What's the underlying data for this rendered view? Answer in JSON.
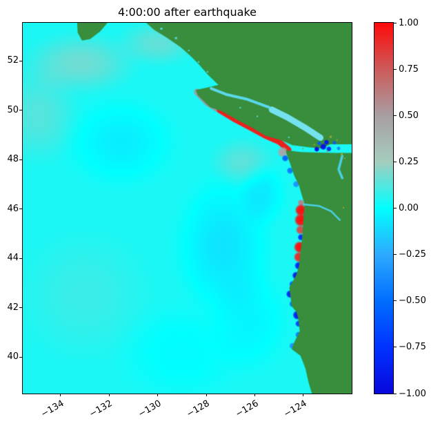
{
  "title": "4:00:00 after earthquake",
  "chart_data": {
    "type": "heatmap",
    "title": "4:00:00 after earthquake",
    "xlabel": "",
    "ylabel": "",
    "xlim": [
      -135.56,
      -122.01
    ],
    "ylim": [
      38.52,
      53.54
    ],
    "xticks": [
      {
        "value": -134,
        "label": "−134"
      },
      {
        "value": -132,
        "label": "−132"
      },
      {
        "value": -130,
        "label": "−130"
      },
      {
        "value": -128,
        "label": "−128"
      },
      {
        "value": -126,
        "label": "−126"
      },
      {
        "value": -124,
        "label": "−124"
      }
    ],
    "yticks": [
      {
        "value": 40,
        "label": "40"
      },
      {
        "value": 42,
        "label": "42"
      },
      {
        "value": 44,
        "label": "44"
      },
      {
        "value": 46,
        "label": "46"
      },
      {
        "value": 48,
        "label": "48"
      },
      {
        "value": 50,
        "label": "50"
      },
      {
        "value": 52,
        "label": "52"
      }
    ],
    "colorbar": {
      "min": -1,
      "max": 1,
      "ticks": [
        {
          "value": 1.0,
          "label": "1.00"
        },
        {
          "value": 0.75,
          "label": "0.75"
        },
        {
          "value": 0.5,
          "label": "0.50"
        },
        {
          "value": 0.25,
          "label": "0.25"
        },
        {
          "value": 0.0,
          "label": "0.00"
        },
        {
          "value": -0.25,
          "label": "−0.25"
        },
        {
          "value": -0.5,
          "label": "−0.50"
        },
        {
          "value": -0.75,
          "label": "−0.75"
        },
        {
          "value": -1.0,
          "label": "−1.00"
        }
      ]
    },
    "colormap_stops": [
      {
        "v": -1.0,
        "rgb": [
          8,
          8,
          220
        ]
      },
      {
        "v": -0.75,
        "rgb": [
          0,
          50,
          255
        ]
      },
      {
        "v": -0.5,
        "rgb": [
          0,
          110,
          255
        ]
      },
      {
        "v": -0.25,
        "rgb": [
          45,
          170,
          255
        ]
      },
      {
        "v": 0.0,
        "rgb": [
          0,
          255,
          255
        ]
      },
      {
        "v": 0.25,
        "rgb": [
          165,
          205,
          190
        ]
      },
      {
        "v": 0.5,
        "rgb": [
          168,
          158,
          162
        ]
      },
      {
        "v": 0.75,
        "rgb": [
          205,
          90,
          90
        ]
      },
      {
        "v": 1.0,
        "rgb": [
          255,
          10,
          10
        ]
      }
    ],
    "land_color": "#388e3c",
    "ocean": {
      "base": 0.04,
      "blobs": [
        {
          "lon": -133.2,
          "lat": 51.9,
          "rx": 2.8,
          "ry": 1.5,
          "v": 0.13
        },
        {
          "lon": -130.0,
          "lat": 52.7,
          "rx": 2.0,
          "ry": 1.1,
          "v": 0.11
        },
        {
          "lon": -134.9,
          "lat": 49.8,
          "rx": 2.0,
          "ry": 2.4,
          "v": 0.09
        },
        {
          "lon": -131.5,
          "lat": 48.7,
          "rx": 2.8,
          "ry": 2.2,
          "v": -0.09
        },
        {
          "lon": -127.3,
          "lat": 44.5,
          "rx": 2.4,
          "ry": 3.4,
          "v": -0.12
        },
        {
          "lon": -125.7,
          "lat": 46.6,
          "rx": 1.2,
          "ry": 1.6,
          "v": -0.1
        },
        {
          "lon": -126.5,
          "lat": 47.9,
          "rx": 1.6,
          "ry": 1.2,
          "v": 0.1
        },
        {
          "lon": -133.0,
          "lat": 42.5,
          "rx": 3.4,
          "ry": 3.2,
          "v": 0.05
        },
        {
          "lon": -129.0,
          "lat": 40.2,
          "rx": 3.2,
          "ry": 2.4,
          "v": -0.05
        },
        {
          "lon": -126.2,
          "lat": 41.5,
          "rx": 2.0,
          "ry": 2.6,
          "v": -0.07
        }
      ]
    },
    "coastal_band": {
      "points": [
        [
          -128.38,
          50.74
        ],
        [
          -127.95,
          50.3
        ],
        [
          -127.45,
          50.0
        ],
        [
          -126.85,
          49.64
        ],
        [
          -126.2,
          49.3
        ],
        [
          -125.6,
          48.98
        ],
        [
          -125.0,
          48.72
        ],
        [
          -124.62,
          48.4
        ]
      ],
      "bright_from": 2,
      "base_color": "rgba(175,140,150,0.85)",
      "bright_color": "rgba(235,28,22,0.95)"
    },
    "coastal_spots": [
      {
        "lon": -124.85,
        "lat": 48.3,
        "v": 0.45,
        "r": 8
      },
      {
        "lon": -124.75,
        "lat": 48.05,
        "v": -0.55,
        "r": 5
      },
      {
        "lon": -124.55,
        "lat": 47.55,
        "v": -0.45,
        "r": 5
      },
      {
        "lon": -124.3,
        "lat": 47.0,
        "v": -0.35,
        "r": 5
      },
      {
        "lon": -124.1,
        "lat": 46.25,
        "v": 0.6,
        "r": 5
      },
      {
        "lon": -124.1,
        "lat": 45.95,
        "v": 1.0,
        "r": 9
      },
      {
        "lon": -124.1,
        "lat": 45.55,
        "v": 1.0,
        "r": 10
      },
      {
        "lon": -124.12,
        "lat": 45.15,
        "v": 0.8,
        "r": 7
      },
      {
        "lon": -124.1,
        "lat": 44.85,
        "v": -0.8,
        "r": 5
      },
      {
        "lon": -124.15,
        "lat": 44.45,
        "v": 1.0,
        "r": 9
      },
      {
        "lon": -124.18,
        "lat": 44.05,
        "v": 0.9,
        "r": 8
      },
      {
        "lon": -124.2,
        "lat": 43.7,
        "v": -0.85,
        "r": 6
      },
      {
        "lon": -124.3,
        "lat": 43.3,
        "v": -0.9,
        "r": 6
      },
      {
        "lon": -124.45,
        "lat": 42.95,
        "v": -0.6,
        "r": 5
      },
      {
        "lon": -124.55,
        "lat": 42.55,
        "v": -0.85,
        "r": 6
      },
      {
        "lon": -124.45,
        "lat": 42.15,
        "v": -0.5,
        "r": 5
      },
      {
        "lon": -124.25,
        "lat": 41.7,
        "v": -0.9,
        "r": 7
      },
      {
        "lon": -124.2,
        "lat": 41.35,
        "v": -0.7,
        "r": 5
      },
      {
        "lon": -124.2,
        "lat": 40.9,
        "v": -0.45,
        "r": 5
      },
      {
        "lon": -124.45,
        "lat": 40.45,
        "v": -0.35,
        "r": 5
      }
    ],
    "land_polygons": {
      "mainland_south": [
        [
          -122.01,
          38.52
        ],
        [
          -123.65,
          38.52
        ],
        [
          -123.78,
          38.95
        ],
        [
          -123.92,
          39.55
        ],
        [
          -124.12,
          40.05
        ],
        [
          -124.48,
          40.32
        ],
        [
          -124.4,
          40.55
        ],
        [
          -124.15,
          41.05
        ],
        [
          -124.22,
          41.6
        ],
        [
          -124.3,
          41.85
        ],
        [
          -124.48,
          42.05
        ],
        [
          -124.58,
          42.82
        ],
        [
          -124.3,
          43.3
        ],
        [
          -124.18,
          43.7
        ],
        [
          -124.12,
          44.3
        ],
        [
          -124.06,
          44.75
        ],
        [
          -124.02,
          45.3
        ],
        [
          -123.98,
          45.85
        ],
        [
          -123.95,
          46.2
        ],
        [
          -124.08,
          46.6
        ],
        [
          -124.18,
          46.95
        ],
        [
          -124.38,
          47.35
        ],
        [
          -124.55,
          47.85
        ],
        [
          -124.7,
          48.25
        ],
        [
          -124.72,
          48.38
        ],
        [
          -124.1,
          48.3
        ],
        [
          -123.4,
          48.28
        ],
        [
          -122.7,
          48.27
        ],
        [
          -122.01,
          48.27
        ]
      ],
      "bc_mainland": [
        [
          -122.01,
          48.62
        ],
        [
          -122.9,
          48.62
        ],
        [
          -123.25,
          48.45
        ],
        [
          -123.8,
          48.5
        ],
        [
          -124.45,
          48.58
        ],
        [
          -124.9,
          48.78
        ],
        [
          -125.55,
          48.96
        ],
        [
          -126.1,
          49.28
        ],
        [
          -126.75,
          49.62
        ],
        [
          -127.35,
          49.95
        ],
        [
          -127.85,
          50.12
        ],
        [
          -128.35,
          50.6
        ],
        [
          -128.43,
          50.82
        ],
        [
          -127.95,
          50.92
        ],
        [
          -127.5,
          51.02
        ],
        [
          -127.92,
          51.42
        ],
        [
          -128.3,
          51.85
        ],
        [
          -128.6,
          52.15
        ],
        [
          -129.05,
          52.55
        ],
        [
          -129.65,
          52.95
        ],
        [
          -130.15,
          53.25
        ],
        [
          -130.5,
          53.56
        ],
        [
          -122.01,
          53.56
        ]
      ],
      "haida_gwaii": [
        [
          -133.32,
          53.56
        ],
        [
          -132.05,
          53.56
        ],
        [
          -132.38,
          53.18
        ],
        [
          -132.78,
          52.88
        ],
        [
          -133.12,
          52.82
        ],
        [
          -133.3,
          53.15
        ]
      ]
    },
    "inland_water": {
      "lines": [
        {
          "name": "georgia-strait",
          "color": "#73e2ee",
          "width": 9,
          "points": [
            [
              -123.3,
              48.88
            ],
            [
              -123.95,
              49.3
            ],
            [
              -124.7,
              49.73
            ],
            [
              -125.3,
              50.02
            ]
          ]
        },
        {
          "name": "johnstone-strait",
          "color": "#5ad8ea",
          "width": 4,
          "points": [
            [
              -125.42,
              50.12
            ],
            [
              -126.35,
              50.45
            ],
            [
              -127.15,
              50.63
            ],
            [
              -127.8,
              50.88
            ]
          ]
        },
        {
          "name": "columbia-river",
          "color": "#49d0e6",
          "width": 2.5,
          "points": [
            [
              -123.95,
              46.18
            ],
            [
              -123.35,
              46.12
            ],
            [
              -122.85,
              45.9
            ],
            [
              -122.5,
              45.55
            ]
          ]
        },
        {
          "name": "puget-sound",
          "color": "#49d0e6",
          "width": 3.5,
          "points": [
            [
              -122.4,
              48.15
            ],
            [
              -122.55,
              47.6
            ],
            [
              -122.4,
              47.25
            ]
          ]
        }
      ],
      "dots": [
        {
          "lon": -123.45,
          "lat": 48.42,
          "v": -1.0,
          "r": 4
        },
        {
          "lon": -123.18,
          "lat": 48.52,
          "v": -0.95,
          "r": 5
        },
        {
          "lon": -122.95,
          "lat": 48.43,
          "v": -0.8,
          "r": 4
        },
        {
          "lon": -123.05,
          "lat": 48.7,
          "v": -0.9,
          "r": 4
        },
        {
          "lon": -123.35,
          "lat": 48.66,
          "v": -0.6,
          "r": 3
        },
        {
          "lon": -122.72,
          "lat": 48.68,
          "v": -0.55,
          "r": 3
        },
        {
          "lon": -122.55,
          "lat": 48.45,
          "v": -0.4,
          "r": 3
        }
      ],
      "speckles": [
        {
          "lon": -122.88,
          "lat": 48.92,
          "color": "#97a832",
          "size": 3
        },
        {
          "lon": -122.62,
          "lat": 48.78,
          "color": "#97a832",
          "size": 2
        },
        {
          "lon": -123.02,
          "lat": 48.33,
          "color": "#97a832",
          "size": 2
        },
        {
          "lon": -124.02,
          "lat": 48.44,
          "color": "#97a832",
          "size": 2
        },
        {
          "lon": -122.42,
          "lat": 48.22,
          "color": "#97a832",
          "size": 3
        },
        {
          "lon": -123.55,
          "lat": 48.6,
          "color": "#97a832",
          "size": 2
        },
        {
          "lon": -122.35,
          "lat": 46.05,
          "color": "#97a832",
          "size": 2
        },
        {
          "lon": -122.3,
          "lat": 48.05,
          "color": "#97a832",
          "size": 2
        },
        {
          "lon": -129.25,
          "lat": 52.92,
          "color": "#55dbe8",
          "size": 3
        },
        {
          "lon": -128.72,
          "lat": 52.42,
          "color": "#55dbe8",
          "size": 2
        },
        {
          "lon": -128.32,
          "lat": 51.95,
          "color": "#55dbe8",
          "size": 2
        },
        {
          "lon": -129.85,
          "lat": 53.3,
          "color": "#55dbe8",
          "size": 3
        },
        {
          "lon": -127.95,
          "lat": 51.55,
          "color": "#55dbe8",
          "size": 2
        },
        {
          "lon": -126.6,
          "lat": 50.1,
          "color": "#55dbe8",
          "size": 2
        },
        {
          "lon": -125.9,
          "lat": 49.75,
          "color": "#55dbe8",
          "size": 2
        },
        {
          "lon": -124.6,
          "lat": 48.9,
          "color": "#55dbe8",
          "size": 2
        }
      ]
    }
  }
}
